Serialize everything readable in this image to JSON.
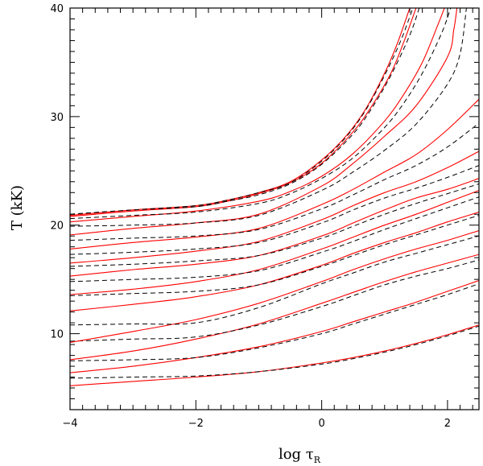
{
  "chart_data": {
    "type": "line",
    "xlabel": {
      "main": "log τ",
      "sub": "R"
    },
    "ylabel": "T (kK)",
    "xlim": [
      -4,
      2.5
    ],
    "ylim": [
      3,
      40
    ],
    "xticks": {
      "major": [
        -4,
        -2,
        0,
        2
      ],
      "major_labels": [
        "−4",
        "−2",
        "0",
        "2"
      ],
      "minor_step": 0.2
    },
    "yticks": {
      "major": [
        10,
        20,
        30,
        40
      ],
      "major_labels": [
        "10",
        "20",
        "30",
        "40"
      ],
      "minor_step": 1
    },
    "grid": false,
    "legend": "none",
    "colors": {
      "solid": "#ff0000",
      "dashed": "#000000"
    },
    "series": [
      {
        "style": "solid",
        "x": [
          -4,
          -3,
          -2,
          -1,
          0,
          0.5,
          1,
          1.5,
          2,
          2.5
        ],
        "y": [
          5.2,
          5.6,
          6.0,
          6.5,
          7.3,
          7.8,
          8.4,
          9.1,
          9.9,
          10.8
        ]
      },
      {
        "style": "dashed",
        "x": [
          -4,
          -3,
          -2,
          -1,
          0,
          0.5,
          1,
          1.5,
          2,
          2.5
        ],
        "y": [
          5.9,
          6.0,
          6.1,
          6.5,
          7.2,
          7.7,
          8.3,
          9.0,
          9.8,
          10.7
        ]
      },
      {
        "style": "solid",
        "x": [
          -4,
          -3,
          -2,
          -1,
          0,
          0.5,
          1,
          1.5,
          2,
          2.5
        ],
        "y": [
          6.4,
          7.0,
          7.8,
          8.8,
          10.2,
          11.1,
          12.0,
          12.9,
          13.9,
          14.9
        ]
      },
      {
        "style": "dashed",
        "x": [
          -4,
          -3,
          -2,
          -1,
          0,
          0.5,
          1,
          1.5,
          2,
          2.5
        ],
        "y": [
          7.5,
          7.6,
          7.8,
          8.7,
          10.0,
          10.9,
          11.8,
          12.7,
          13.6,
          14.6
        ]
      },
      {
        "style": "solid",
        "x": [
          -4,
          -3,
          -2,
          -1,
          0,
          0.5,
          1,
          1.5,
          2,
          2.5
        ],
        "y": [
          7.6,
          8.4,
          9.5,
          10.9,
          12.8,
          13.8,
          14.8,
          15.7,
          16.5,
          17.3
        ]
      },
      {
        "style": "dashed",
        "x": [
          -4,
          -3,
          -2,
          -1,
          0,
          0.5,
          1,
          1.5,
          2,
          2.5
        ],
        "y": [
          9.3,
          9.5,
          9.7,
          10.8,
          12.5,
          13.5,
          14.5,
          15.3,
          16.0,
          16.8
        ]
      },
      {
        "style": "solid",
        "x": [
          -4,
          -3,
          -2,
          -1,
          0,
          0.5,
          1,
          1.5,
          2,
          2.5
        ],
        "y": [
          9.2,
          10.2,
          11.3,
          12.8,
          14.8,
          15.9,
          16.9,
          17.8,
          18.6,
          19.5
        ]
      },
      {
        "style": "dashed",
        "x": [
          -4,
          -3,
          -2,
          -1,
          0,
          0.5,
          1,
          1.5,
          2,
          2.5
        ],
        "y": [
          10.8,
          10.9,
          11.0,
          12.4,
          14.6,
          15.6,
          16.6,
          17.4,
          18.2,
          19.0
        ]
      },
      {
        "style": "solid",
        "x": [
          -4,
          -3,
          -2,
          -1,
          0,
          0.5,
          1,
          1.5,
          2,
          2.5
        ],
        "y": [
          12.1,
          12.7,
          13.4,
          14.5,
          16.3,
          17.4,
          18.4,
          19.3,
          20.3,
          21.2
        ]
      },
      {
        "style": "dashed",
        "x": [
          -4,
          -3,
          -2,
          -1,
          0,
          0.5,
          1,
          1.5,
          2,
          2.5
        ],
        "y": [
          13.5,
          13.7,
          13.9,
          14.5,
          16.2,
          17.2,
          18.2,
          19.1,
          20.0,
          20.9
        ]
      },
      {
        "style": "solid",
        "x": [
          -4,
          -3,
          -2,
          -1,
          0,
          0.5,
          1,
          1.5,
          2,
          2.5
        ],
        "y": [
          13.6,
          14.1,
          14.8,
          15.9,
          17.8,
          18.9,
          20.0,
          21.0,
          22.1,
          23.2
        ]
      },
      {
        "style": "dashed",
        "x": [
          -4,
          -3,
          -2,
          -1,
          0,
          0.5,
          1,
          1.5,
          2,
          2.5
        ],
        "y": [
          14.8,
          15.0,
          15.2,
          15.8,
          17.5,
          18.5,
          19.6,
          20.6,
          21.6,
          22.6
        ]
      },
      {
        "style": "solid",
        "x": [
          -4,
          -3,
          -2,
          -1,
          0,
          0.5,
          1,
          1.5,
          2,
          2.5
        ],
        "y": [
          15.3,
          15.9,
          16.4,
          17.2,
          19.0,
          20.2,
          21.4,
          22.5,
          23.3,
          24.3
        ]
      },
      {
        "style": "dashed",
        "x": [
          -4,
          -3,
          -2,
          -1,
          0,
          0.5,
          1,
          1.5,
          2,
          2.5
        ],
        "y": [
          16.2,
          16.4,
          16.7,
          17.2,
          18.8,
          19.9,
          21.0,
          22.0,
          22.9,
          23.8
        ]
      },
      {
        "style": "solid",
        "x": [
          -4,
          -3,
          -2,
          -1,
          0,
          0.5,
          1,
          1.5,
          2,
          2.5
        ],
        "y": [
          16.5,
          17.0,
          17.6,
          18.5,
          20.5,
          21.8,
          23.0,
          24.0,
          25.3,
          26.8
        ]
      },
      {
        "style": "dashed",
        "x": [
          -4,
          -3,
          -2,
          -1,
          0,
          0.5,
          1,
          1.5,
          2,
          2.5
        ],
        "y": [
          17.3,
          17.5,
          17.8,
          18.4,
          20.2,
          21.4,
          22.5,
          23.4,
          24.4,
          25.5
        ]
      },
      {
        "style": "solid",
        "x": [
          -4,
          -3,
          -2,
          -1,
          0,
          0.5,
          1,
          1.5,
          2,
          2.5
        ],
        "y": [
          17.8,
          18.4,
          18.9,
          19.7,
          21.9,
          23.3,
          24.9,
          26.5,
          28.8,
          31.6
        ]
      },
      {
        "style": "dashed",
        "x": [
          -4,
          -3,
          -2,
          -1,
          0,
          0.5,
          1,
          1.5,
          2,
          2.5
        ],
        "y": [
          18.6,
          18.8,
          19.0,
          19.6,
          21.5,
          22.8,
          24.2,
          25.5,
          27.2,
          29.4
        ]
      },
      {
        "style": "solid",
        "x": [
          -4,
          -3,
          -2,
          -1,
          0,
          0.5,
          1,
          1.5,
          2,
          2.1,
          2.15
        ],
        "y": [
          19.1,
          19.7,
          20.2,
          21.0,
          23.6,
          25.7,
          28.2,
          31.0,
          35.5,
          38.0,
          40.0
        ]
      },
      {
        "style": "dashed",
        "x": [
          -4,
          -3,
          -2,
          -1,
          0,
          0.5,
          1,
          1.5,
          2,
          2.2,
          2.3
        ],
        "y": [
          19.9,
          20.0,
          20.2,
          20.9,
          23.2,
          24.9,
          26.9,
          29.3,
          33.0,
          35.8,
          40.0
        ]
      },
      {
        "style": "solid",
        "x": [
          -4,
          -3,
          -2,
          -1,
          -0.5,
          0,
          0.5,
          1,
          1.3,
          1.6,
          1.85,
          1.95
        ],
        "y": [
          20.3,
          20.8,
          21.3,
          22.2,
          23.1,
          24.5,
          26.6,
          29.6,
          32.0,
          35.0,
          38.5,
          40.0
        ]
      },
      {
        "style": "dashed",
        "x": [
          -4,
          -3,
          -2,
          -1,
          -0.5,
          0,
          0.5,
          1,
          1.3,
          1.6,
          1.9,
          2.05
        ],
        "y": [
          20.6,
          20.9,
          21.2,
          22.0,
          22.9,
          24.3,
          26.2,
          29.0,
          31.2,
          34.0,
          37.6,
          40.0
        ]
      },
      {
        "style": "solid",
        "x": [
          -4,
          -3,
          -2,
          -1.5,
          -1,
          -0.5,
          0,
          0.5,
          0.8,
          1.1,
          1.3,
          1.5
        ],
        "y": [
          20.8,
          21.3,
          21.7,
          22.2,
          22.9,
          23.9,
          25.7,
          28.6,
          31.0,
          34.0,
          36.8,
          40.0
        ]
      },
      {
        "style": "dashed",
        "x": [
          -4,
          -3,
          -2,
          -1.5,
          -1,
          -0.5,
          0,
          0.5,
          0.8,
          1.1,
          1.4,
          1.55
        ],
        "y": [
          21.0,
          21.4,
          21.7,
          22.2,
          22.8,
          23.8,
          25.6,
          28.4,
          30.8,
          33.8,
          37.5,
          40.0
        ]
      },
      {
        "style": "solid",
        "x": [
          -4,
          -3,
          -2,
          -1.5,
          -1,
          -0.5,
          0,
          0.4,
          0.7,
          1,
          1.2,
          1.4
        ],
        "y": [
          20.9,
          21.4,
          21.8,
          22.3,
          23.0,
          24.0,
          26.0,
          28.3,
          30.7,
          34.0,
          36.7,
          40.0
        ]
      },
      {
        "style": "dashed",
        "x": [
          -4,
          -3,
          -2,
          -1.5,
          -1,
          -0.5,
          0,
          0.4,
          0.7,
          1,
          1.25,
          1.45
        ],
        "y": [
          21.0,
          21.4,
          21.8,
          22.3,
          23.0,
          23.9,
          25.9,
          28.2,
          30.6,
          33.8,
          36.9,
          40.0
        ]
      }
    ]
  }
}
